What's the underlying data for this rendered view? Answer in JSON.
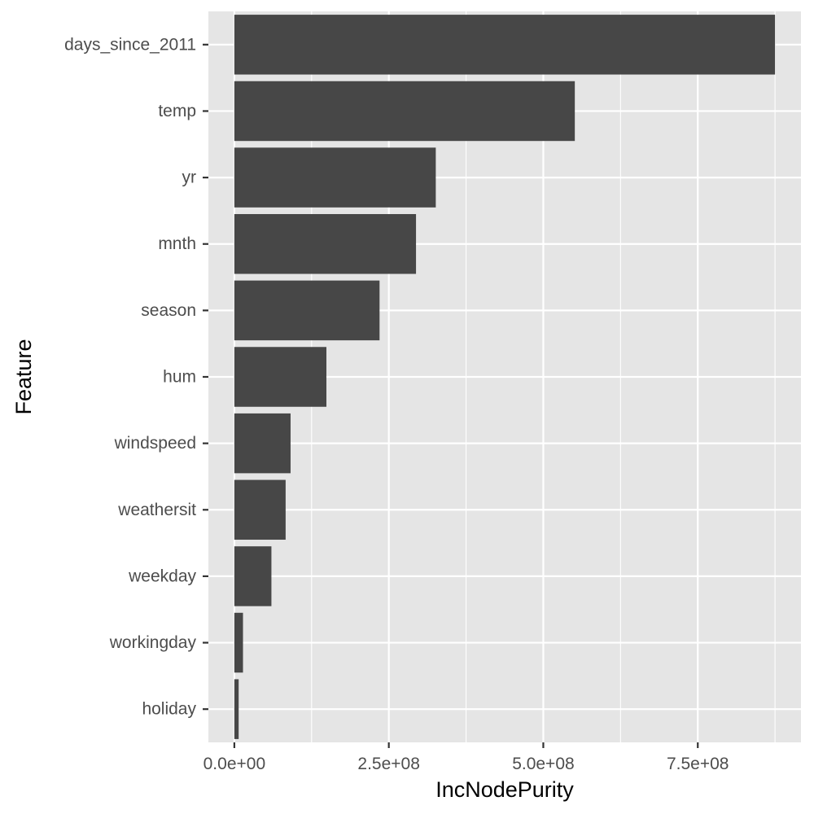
{
  "chart_data": {
    "type": "bar",
    "orientation": "horizontal",
    "xlabel": "IncNodePurity",
    "ylabel": "Feature",
    "categories": [
      "days_since_2011",
      "temp",
      "yr",
      "mnth",
      "season",
      "hum",
      "windspeed",
      "weathersit",
      "weekday",
      "workingday",
      "holiday"
    ],
    "values": [
      875000000,
      551000000,
      326000000,
      294000000,
      235000000,
      149000000,
      91000000,
      83000000,
      60000000,
      14000000,
      7000000
    ],
    "xlim": [
      -42000000,
      917000000
    ],
    "xticks": [
      0,
      250000000,
      500000000,
      750000000
    ],
    "xtick_labels": [
      "0.0e+00",
      "2.5e+08",
      "5.0e+08",
      "7.5e+08"
    ],
    "grid": true,
    "colors": {
      "bar": "#474747",
      "panel": "#e5e5e5",
      "grid": "#ffffff"
    }
  }
}
